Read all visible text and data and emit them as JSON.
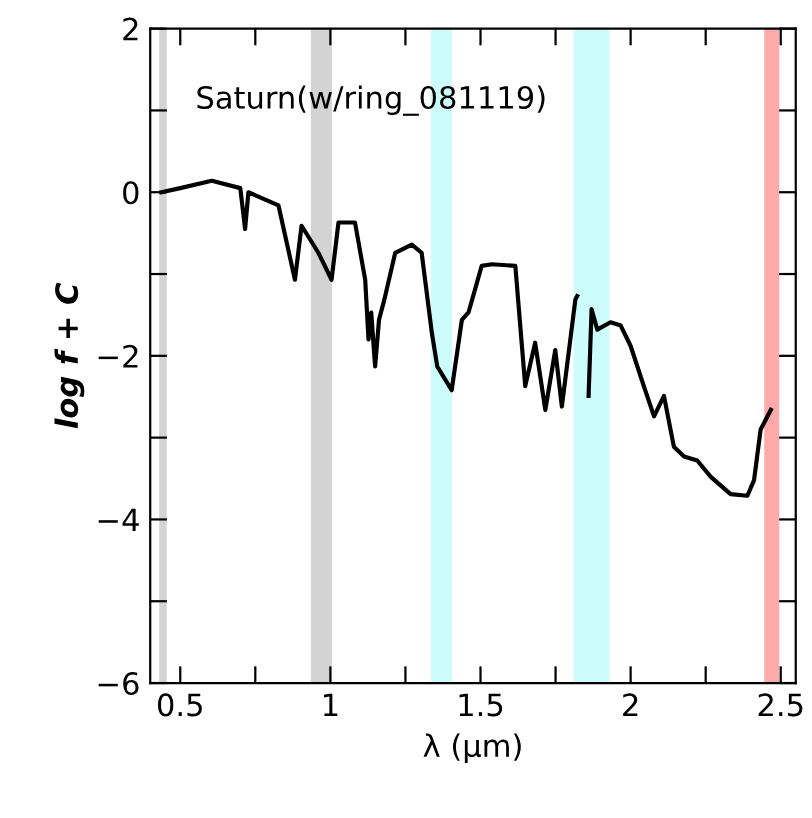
{
  "chart_data": {
    "type": "line",
    "xlabel": "λ (μm)",
    "ylabel": "log f + C",
    "annotations": [
      "Saturn(w/ring_081119)"
    ],
    "x": [
      0.437,
      0.5,
      0.605,
      0.7,
      0.716,
      0.727,
      0.827,
      0.882,
      0.904,
      0.96,
      1.004,
      1.027,
      1.082,
      1.116,
      1.127,
      1.136,
      1.149,
      1.162,
      1.18,
      1.216,
      1.271,
      1.304,
      1.338,
      1.356,
      1.404,
      1.438,
      1.46,
      1.504,
      1.538,
      1.616,
      1.638,
      1.649,
      1.682,
      1.716,
      1.749,
      1.771,
      1.816,
      1.822,
      1.84,
      1.86,
      1.87,
      1.889,
      1.933,
      1.967,
      2.0,
      2.044,
      2.078,
      2.111,
      2.144,
      2.178,
      2.222,
      2.267,
      2.333,
      2.389,
      2.411,
      2.433,
      2.467
    ],
    "series": [
      {
        "color": "#000000",
        "values": [
          0.0,
          0.05,
          0.14,
          0.05,
          -0.45,
          0.0,
          -0.16,
          -1.07,
          -0.41,
          -0.74,
          -1.07,
          -0.37,
          -0.37,
          -1.07,
          -1.8,
          -1.47,
          -2.13,
          -1.56,
          -1.31,
          -0.74,
          -0.64,
          -0.74,
          -1.72,
          -2.13,
          -2.42,
          -1.56,
          -1.47,
          -0.9,
          -0.88,
          -0.9,
          -1.88,
          -2.37,
          -1.84,
          -2.66,
          -1.93,
          -2.62,
          -1.31,
          -1.27,
          null,
          -2.49,
          -1.43,
          -1.68,
          -1.59,
          -1.63,
          -1.88,
          -2.37,
          -2.74,
          -2.49,
          -3.11,
          -3.23,
          -3.28,
          -3.48,
          -3.69,
          -3.71,
          -3.52,
          -2.9,
          -2.66
        ]
      }
    ],
    "xlim": [
      0.4,
      2.55
    ],
    "ylim": [
      -6,
      2
    ],
    "xticks": [
      0.5,
      {
        "value": 0.75,
        "label": null
      },
      1,
      {
        "value": 1.25,
        "label": null
      },
      1.5,
      {
        "value": 1.75,
        "label": null
      },
      2,
      {
        "value": 2.25,
        "label": null
      },
      2.5
    ],
    "yticks": [
      {
        "value": -6,
        "label": "−6"
      },
      {
        "value": -5,
        "label": null
      },
      {
        "value": -4,
        "label": "−4"
      },
      {
        "value": -3,
        "label": null
      },
      {
        "value": -2,
        "label": "−2"
      },
      {
        "value": -1,
        "label": null
      },
      0,
      {
        "value": 1,
        "label": null
      },
      2
    ],
    "bands": [
      {
        "axis": "x",
        "from": 0.43,
        "to": 0.455,
        "color": "#d3d3d3"
      },
      {
        "axis": "x",
        "from": 0.935,
        "to": 1.005,
        "color": "#d3d3d3"
      },
      {
        "axis": "x",
        "from": 1.335,
        "to": 1.405,
        "color": "#ccfcfc"
      },
      {
        "axis": "x",
        "from": 1.81,
        "to": 1.93,
        "color": "#ccfcfc"
      },
      {
        "axis": "x",
        "from": 2.445,
        "to": 2.495,
        "color": "#ffaaaa"
      }
    ],
    "grid": false,
    "legend": false,
    "marker": "none",
    "line_style": "solid"
  }
}
